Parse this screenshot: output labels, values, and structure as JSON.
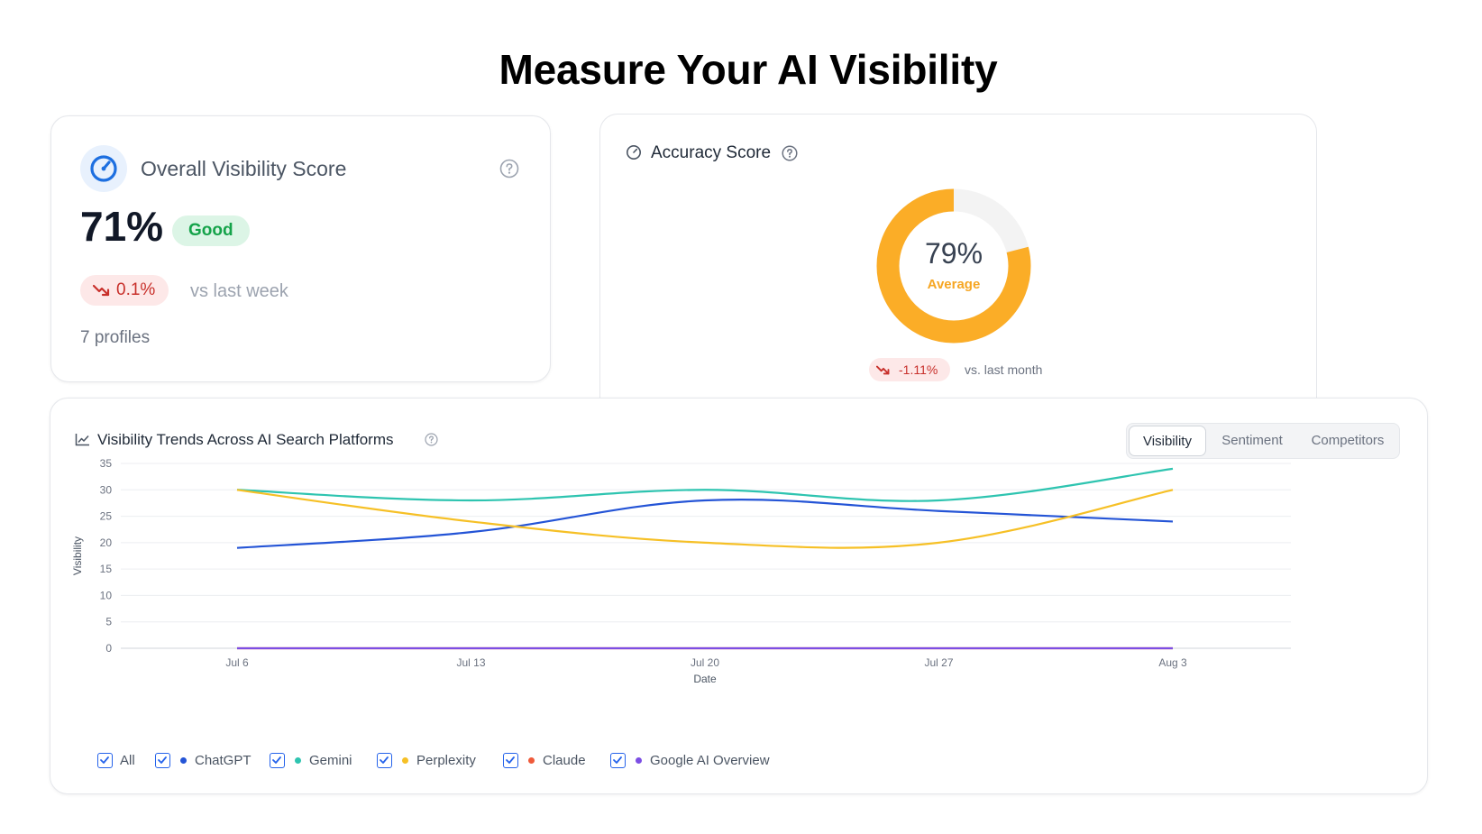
{
  "page_title": "Measure Your AI Visibility",
  "overall": {
    "title": "Overall Visibility Score",
    "score": "71%",
    "rating": "Good",
    "change": "0.1%",
    "change_label": "vs last week",
    "profiles": "7 profiles"
  },
  "accuracy": {
    "title": "Accuracy Score",
    "value": "79%",
    "value_fraction": 0.79,
    "rating": "Average",
    "change": "-1.11%",
    "change_label": "vs. last month",
    "ring_color": "#fbad27",
    "track_color": "#f3f3f3"
  },
  "trends": {
    "title": "Visibility Trends Across AI Search Platforms",
    "tabs": [
      {
        "label": "Visibility",
        "active": true
      },
      {
        "label": "Sentiment",
        "active": false
      },
      {
        "label": "Competitors",
        "active": false
      }
    ],
    "legend": [
      {
        "label": "All",
        "checked": true,
        "color": null
      },
      {
        "label": "ChatGPT",
        "checked": true,
        "color": "#2454d6"
      },
      {
        "label": "Gemini",
        "checked": true,
        "color": "#2ec4b0"
      },
      {
        "label": "Perplexity",
        "checked": true,
        "color": "#f6c026"
      },
      {
        "label": "Claude",
        "checked": true,
        "color": "#ef5a3a"
      },
      {
        "label": "Google AI Overview",
        "checked": true,
        "color": "#7c4ee4"
      }
    ]
  },
  "chart_data": {
    "type": "line",
    "xlabel": "Date",
    "ylabel": "Visibility",
    "x": [
      "Jul 6",
      "Jul 13",
      "Jul 20",
      "Jul 27",
      "Aug 3"
    ],
    "ylim": [
      0,
      35
    ],
    "yticks": [
      0,
      5,
      10,
      15,
      20,
      25,
      30,
      35
    ],
    "grid": true,
    "series": [
      {
        "name": "ChatGPT",
        "color": "#2454d6",
        "values": [
          19,
          22,
          28,
          26,
          24
        ]
      },
      {
        "name": "Gemini",
        "color": "#2ec4b0",
        "values": [
          30,
          28,
          30,
          28,
          34
        ]
      },
      {
        "name": "Perplexity",
        "color": "#f6c026",
        "values": [
          30,
          24,
          20,
          20,
          30
        ]
      },
      {
        "name": "Claude",
        "color": "#ef5a3a",
        "values": [
          0,
          0,
          0,
          0,
          0
        ]
      },
      {
        "name": "Google AI Overview",
        "color": "#7c4ee4",
        "values": [
          0,
          0,
          0,
          0,
          0
        ]
      }
    ]
  }
}
